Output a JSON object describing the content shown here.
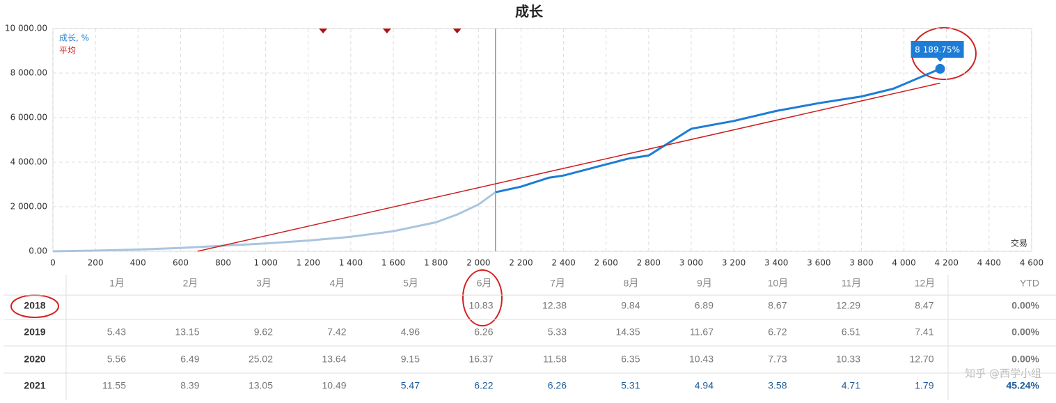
{
  "chart_data": {
    "type": "line",
    "title": "成长",
    "x_label": "交易",
    "series": [
      {
        "name": "成长, %",
        "color": "#1c7cd6",
        "faded_color": "#a9c5e0",
        "x": [
          0,
          200,
          400,
          600,
          800,
          1000,
          1200,
          1400,
          1600,
          1800,
          1900,
          2000,
          2080,
          2200,
          2330,
          2400,
          2600,
          2700,
          2800,
          2900,
          3000,
          3200,
          3400,
          3600,
          3700,
          3800,
          3950,
          4000,
          4170
        ],
        "values": [
          0,
          30,
          80,
          150,
          250,
          350,
          480,
          650,
          900,
          1300,
          1650,
          2100,
          2650,
          2900,
          3300,
          3400,
          3900,
          4150,
          4300,
          4900,
          5500,
          5850,
          6300,
          6650,
          6800,
          6950,
          7300,
          7500,
          8189.75
        ]
      },
      {
        "name": "平均",
        "color": "#cc1f1f",
        "x": [
          680,
          4170
        ],
        "values": [
          0,
          7550
        ]
      }
    ],
    "fade_before_x": 2080,
    "annotation": "8 189.75%",
    "markers_x": [
      1270,
      1570,
      1900
    ],
    "xlim": [
      0,
      4600
    ],
    "xticks": [
      0,
      200,
      400,
      600,
      800,
      {
        "value": 1000,
        "label": "1 000"
      },
      {
        "value": 1200,
        "label": "1 200"
      },
      {
        "value": 1400,
        "label": "1 400"
      },
      {
        "value": 1600,
        "label": "1 600"
      },
      {
        "value": 1800,
        "label": "1 800"
      },
      {
        "value": 2000,
        "label": "2 000"
      },
      {
        "value": 2200,
        "label": "2 200"
      },
      {
        "value": 2400,
        "label": "2 400"
      },
      {
        "value": 2600,
        "label": "2 600"
      },
      {
        "value": 2800,
        "label": "2 800"
      },
      {
        "value": 3000,
        "label": "3 000"
      },
      {
        "value": 3200,
        "label": "3 200"
      },
      {
        "value": 3400,
        "label": "3 400"
      },
      {
        "value": 3600,
        "label": "3 600"
      },
      {
        "value": 3800,
        "label": "3 800"
      },
      {
        "value": 4000,
        "label": "4 000"
      },
      {
        "value": 4200,
        "label": "4 200"
      },
      {
        "value": 4400,
        "label": "4 400"
      },
      {
        "value": 4600,
        "label": "4 600"
      }
    ],
    "ylim": [
      0,
      10000
    ],
    "yticks": [
      {
        "value": 0,
        "label": "0.00"
      },
      {
        "value": 2000,
        "label": "2 000.00"
      },
      {
        "value": 4000,
        "label": "4 000.00"
      },
      {
        "value": 6000,
        "label": "6 000.00"
      },
      {
        "value": 8000,
        "label": "8 000.00"
      },
      {
        "value": 10000,
        "label": "10 000.00"
      }
    ],
    "grid": true
  },
  "table": {
    "columns": [
      "1月",
      "2月",
      "3月",
      "4月",
      "5月",
      "6月",
      "7月",
      "8月",
      "9月",
      "10月",
      "11月",
      "12月"
    ],
    "ytd_header": "YTD",
    "rows": [
      {
        "year": "2018",
        "months": [
          null,
          null,
          null,
          null,
          null,
          "10.83",
          "12.38",
          "9.84",
          "6.89",
          "8.67",
          "12.29",
          "8.47"
        ],
        "ytd": "0.00%"
      },
      {
        "year": "2019",
        "months": [
          "5.43",
          "13.15",
          "9.62",
          "7.42",
          "4.96",
          "6.26",
          "5.33",
          "14.35",
          "11.67",
          "6.72",
          "6.51",
          "7.41"
        ],
        "ytd": "0.00%"
      },
      {
        "year": "2020",
        "months": [
          "5.56",
          "6.49",
          "25.02",
          "13.64",
          "9.15",
          "16.37",
          "11.58",
          "6.35",
          "10.43",
          "7.73",
          "10.33",
          "12.70"
        ],
        "ytd": "0.00%"
      },
      {
        "year": "2021",
        "months": [
          "11.55",
          "8.39",
          "13.05",
          "10.49",
          "5.47",
          "6.22",
          "6.26",
          "5.31",
          "4.94",
          "3.58",
          "4.71",
          "1.79"
        ],
        "ytd": "45.24%"
      }
    ]
  },
  "watermark": "知乎 @西学小组"
}
